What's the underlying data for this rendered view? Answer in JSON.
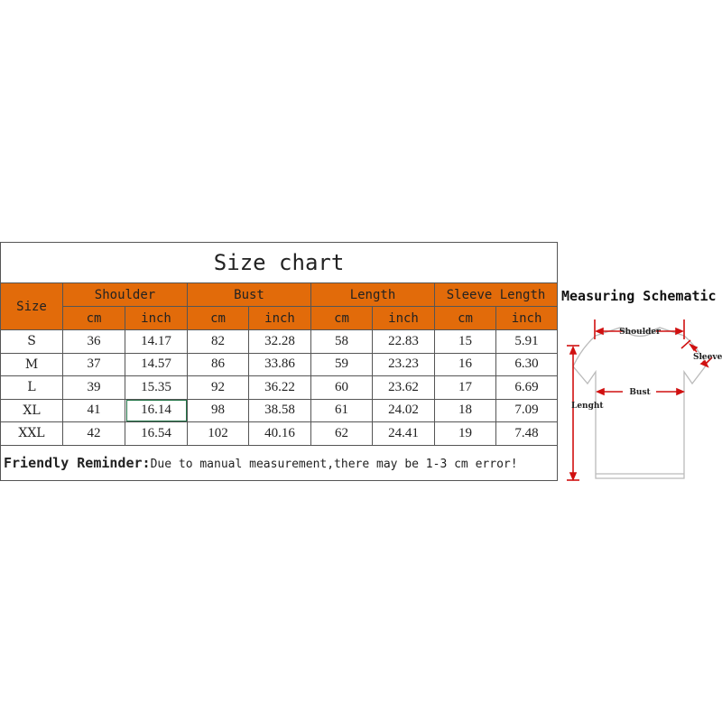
{
  "title": "Size chart",
  "header": {
    "size": "Size",
    "groups": [
      "Shoulder",
      "Bust",
      "Length",
      "Sleeve Length"
    ],
    "units": [
      "cm",
      "inch",
      "cm",
      "inch",
      "cm",
      "inch",
      "cm",
      "inch"
    ]
  },
  "rows": [
    {
      "size": "S",
      "values": [
        "36",
        "14.17",
        "82",
        "32.28",
        "58",
        "22.83",
        "15",
        "5.91"
      ]
    },
    {
      "size": "M",
      "values": [
        "37",
        "14.57",
        "86",
        "33.86",
        "59",
        "23.23",
        "16",
        "6.30"
      ]
    },
    {
      "size": "L",
      "values": [
        "39",
        "15.35",
        "92",
        "36.22",
        "60",
        "23.62",
        "17",
        "6.69"
      ]
    },
    {
      "size": "XL",
      "values": [
        "41",
        "16.14",
        "98",
        "38.58",
        "61",
        "24.02",
        "18",
        "7.09"
      ]
    },
    {
      "size": "XXL",
      "values": [
        "42",
        "16.54",
        "102",
        "40.16",
        "62",
        "24.41",
        "19",
        "7.48"
      ]
    }
  ],
  "reminder": {
    "label": "Friendly Reminder:",
    "text": "Due to manual measurement,there may be 1-3 cm error!"
  },
  "schematic": {
    "title": "Measuring Schematic",
    "labels": {
      "shoulder": "Shoulder",
      "sleeve": "Sleeve",
      "bust": "Bust",
      "length": "Lenght"
    }
  },
  "colors": {
    "header": "#e26b0a",
    "arrow": "#d01010",
    "selection": "#217346"
  }
}
